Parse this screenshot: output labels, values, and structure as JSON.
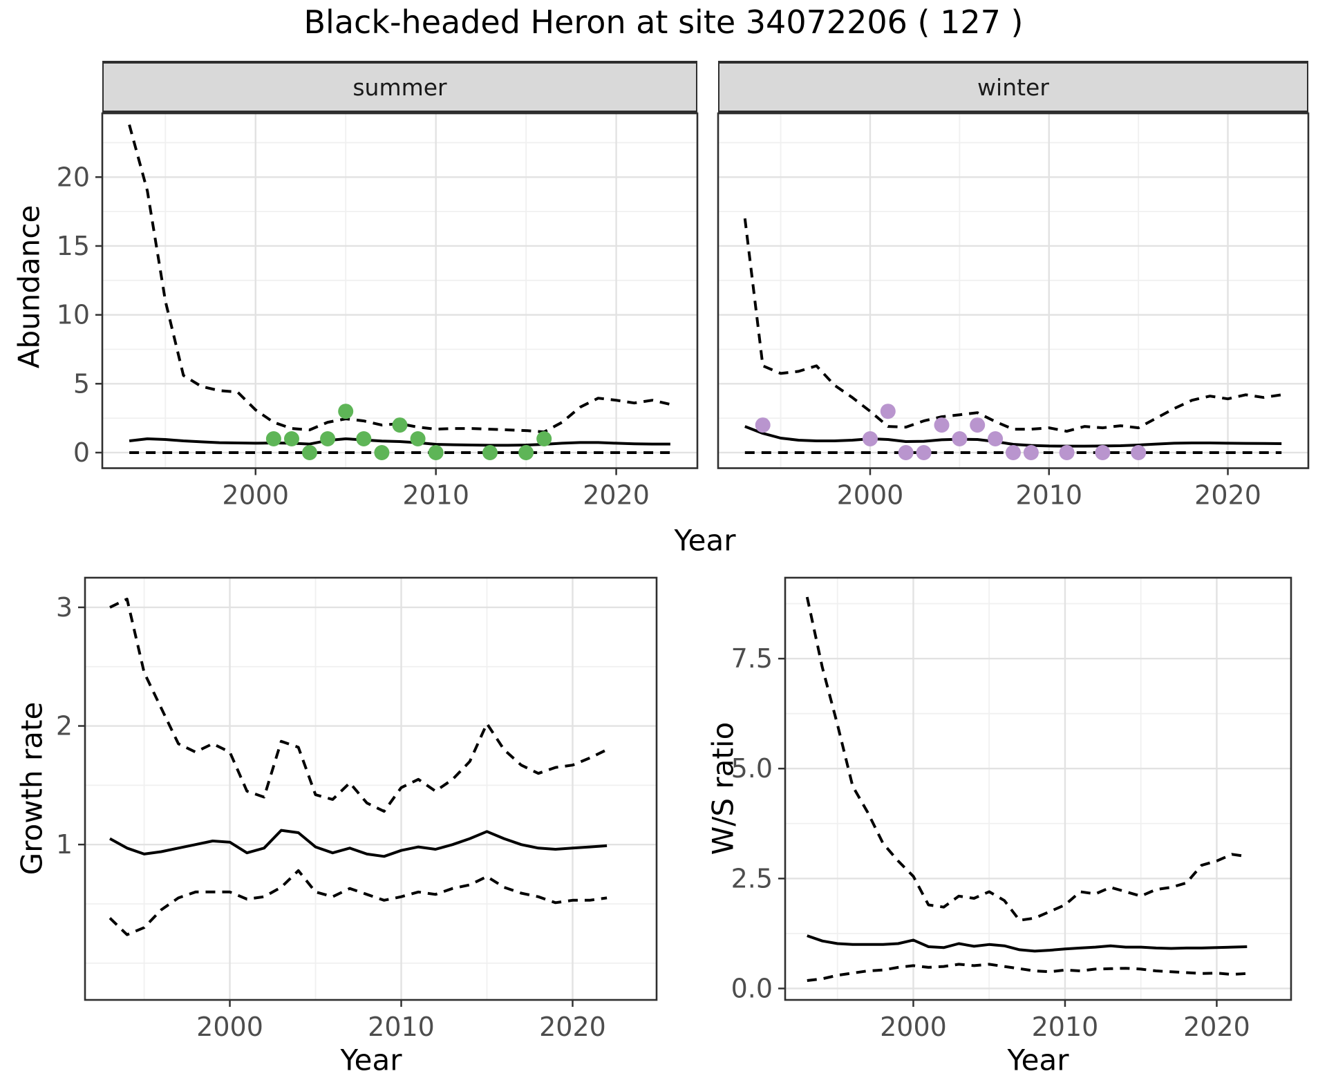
{
  "title": "Black-headed Heron at site 34072206 ( 127 )",
  "facets": [
    {
      "label": "summer"
    },
    {
      "label": "winter"
    }
  ],
  "axis_titles": {
    "year": "Year",
    "abundance": "Abundance",
    "growth_rate": "Growth rate",
    "ws_ratio": "W/S ratio"
  },
  "colors": {
    "summer_points": "#5eb557",
    "winter_points": "#b995ce",
    "line": "#000000",
    "strip_fill": "#d9d9d9",
    "strip_border": "#2e2e2e",
    "panel_border": "#2f2f2f",
    "grid_major": "#e2e2e2",
    "grid_minor": "#f0f0f0",
    "tick_text": "#4d4d4d",
    "tick_mark": "#333333"
  },
  "chart_data": [
    {
      "id": "abundance-summer",
      "type": "line",
      "facet_label": "summer",
      "xlabel": "Year",
      "ylabel": "Abundance",
      "xlim": [
        1991.5,
        2024.5
      ],
      "ylim": [
        -1.13,
        24.63
      ],
      "x_ticks": [
        2000,
        2010,
        2020
      ],
      "x_tick_labels": [
        "2000",
        "2010",
        "2020"
      ],
      "x_minor": [
        1995,
        2005,
        2015
      ],
      "y_ticks": [
        0,
        5,
        10,
        15,
        20
      ],
      "y_tick_labels": [
        "0",
        "5",
        "10",
        "15",
        "20"
      ],
      "y_minor": [
        2.5,
        7.5,
        12.5,
        17.5,
        22.5
      ],
      "grid": true,
      "legend": "none",
      "years": [
        1993,
        1994,
        1995,
        1996,
        1997,
        1998,
        1999,
        2000,
        2001,
        2002,
        2003,
        2004,
        2005,
        2006,
        2007,
        2008,
        2009,
        2010,
        2011,
        2012,
        2013,
        2014,
        2015,
        2016,
        2017,
        2018,
        2019,
        2020,
        2021,
        2022,
        2023
      ],
      "series": [
        {
          "name": "upper-credible-interval",
          "line": "dashed",
          "values": [
            23.8,
            19.0,
            11.0,
            5.6,
            4.8,
            4.5,
            4.4,
            3.1,
            2.2,
            1.75,
            1.65,
            2.2,
            2.45,
            2.3,
            2.0,
            2.1,
            1.85,
            1.7,
            1.75,
            1.75,
            1.7,
            1.65,
            1.6,
            1.5,
            2.2,
            3.3,
            3.95,
            3.8,
            3.6,
            3.8,
            3.5
          ]
        },
        {
          "name": "median-prediction",
          "line": "solid",
          "values": [
            0.85,
            1.0,
            0.95,
            0.85,
            0.78,
            0.72,
            0.7,
            0.68,
            0.7,
            0.68,
            0.62,
            0.88,
            1.0,
            0.92,
            0.84,
            0.8,
            0.72,
            0.6,
            0.57,
            0.55,
            0.53,
            0.53,
            0.55,
            0.6,
            0.68,
            0.73,
            0.73,
            0.68,
            0.64,
            0.62,
            0.62
          ]
        },
        {
          "name": "lower-credible-interval",
          "line": "dashed",
          "values": [
            0,
            0,
            0,
            0,
            0,
            0,
            0,
            0,
            0,
            0,
            0,
            0,
            0,
            0,
            0,
            0,
            0,
            0,
            0,
            0,
            0,
            0,
            0,
            0,
            0,
            0,
            0,
            0,
            0,
            0,
            0
          ]
        }
      ],
      "points": {
        "name": "observed-counts-summer",
        "color": "#5eb557",
        "years": [
          2001,
          2002,
          2003,
          2004,
          2005,
          2006,
          2007,
          2008,
          2009,
          2010,
          2013,
          2015,
          2016
        ],
        "values": [
          1,
          1,
          0,
          1,
          3,
          1,
          0,
          2,
          1,
          0,
          0,
          0,
          1
        ]
      }
    },
    {
      "id": "abundance-winter",
      "type": "line",
      "facet_label": "winter",
      "xlabel": "Year",
      "ylabel": "Abundance",
      "xlim": [
        1991.5,
        2024.5
      ],
      "ylim": [
        -1.13,
        24.63
      ],
      "x_ticks": [
        2000,
        2010,
        2020
      ],
      "x_tick_labels": [
        "2000",
        "2010",
        "2020"
      ],
      "x_minor": [
        1995,
        2005,
        2015
      ],
      "y_ticks": [
        0,
        5,
        10,
        15,
        20
      ],
      "y_tick_labels": [],
      "y_minor": [
        2.5,
        7.5,
        12.5,
        17.5,
        22.5
      ],
      "grid": true,
      "legend": "none",
      "years": [
        1993,
        1994,
        1995,
        1996,
        1997,
        1998,
        1999,
        2000,
        2001,
        2002,
        2003,
        2004,
        2005,
        2006,
        2007,
        2008,
        2009,
        2010,
        2011,
        2012,
        2013,
        2014,
        2015,
        2016,
        2017,
        2018,
        2019,
        2020,
        2021,
        2022,
        2023
      ],
      "series": [
        {
          "name": "upper-credible-interval",
          "line": "dashed",
          "values": [
            17.0,
            6.3,
            5.75,
            5.9,
            6.3,
            4.9,
            4.0,
            3.0,
            1.9,
            1.85,
            2.3,
            2.6,
            2.75,
            2.9,
            2.25,
            1.7,
            1.7,
            1.8,
            1.55,
            1.9,
            1.8,
            1.95,
            1.8,
            2.5,
            3.2,
            3.8,
            4.1,
            3.9,
            4.2,
            4.0,
            4.2
          ]
        },
        {
          "name": "median-prediction",
          "line": "solid",
          "values": [
            1.9,
            1.4,
            1.05,
            0.9,
            0.85,
            0.85,
            0.9,
            1.0,
            0.95,
            0.8,
            0.82,
            0.93,
            0.97,
            0.95,
            0.8,
            0.6,
            0.52,
            0.48,
            0.47,
            0.47,
            0.48,
            0.5,
            0.55,
            0.62,
            0.68,
            0.7,
            0.7,
            0.68,
            0.67,
            0.66,
            0.65
          ]
        },
        {
          "name": "lower-credible-interval",
          "line": "dashed",
          "values": [
            0,
            0,
            0,
            0,
            0,
            0,
            0,
            0,
            0,
            0,
            0,
            0,
            0,
            0,
            0,
            0,
            0,
            0,
            0,
            0,
            0,
            0,
            0,
            0,
            0,
            0,
            0,
            0,
            0,
            0,
            0
          ]
        }
      ],
      "points": {
        "name": "observed-counts-winter",
        "color": "#b995ce",
        "years": [
          1994,
          2000,
          2001,
          2002,
          2003,
          2004,
          2005,
          2006,
          2007,
          2008,
          2009,
          2011,
          2013,
          2015
        ],
        "values": [
          2,
          1,
          3,
          0,
          0,
          2,
          1,
          2,
          1,
          0,
          0,
          0,
          0,
          0
        ]
      }
    },
    {
      "id": "growth-rate",
      "type": "line",
      "facet_label": "",
      "xlabel": "Year",
      "ylabel": "Growth rate",
      "xlim": [
        1991.55,
        2024.9
      ],
      "ylim": [
        -0.31,
        3.25
      ],
      "x_ticks": [
        2000,
        2010,
        2020
      ],
      "x_tick_labels": [
        "2000",
        "2010",
        "2020"
      ],
      "x_minor": [
        1995,
        2005,
        2015
      ],
      "y_ticks": [
        1,
        2,
        3
      ],
      "y_tick_labels": [
        "1",
        "2",
        "3"
      ],
      "y_minor": [
        0,
        0.5,
        1.5,
        2.5
      ],
      "grid": true,
      "legend": "none",
      "years": [
        1993,
        1994,
        1995,
        1996,
        1997,
        1998,
        1999,
        2000,
        2001,
        2002,
        2003,
        2004,
        2005,
        2006,
        2007,
        2008,
        2009,
        2010,
        2011,
        2012,
        2013,
        2014,
        2015,
        2016,
        2017,
        2018,
        2019,
        2020,
        2021,
        2022
      ],
      "series": [
        {
          "name": "upper-credible-interval",
          "line": "dashed",
          "values": [
            3.0,
            3.07,
            2.45,
            2.15,
            1.85,
            1.78,
            1.85,
            1.78,
            1.45,
            1.4,
            1.87,
            1.82,
            1.42,
            1.38,
            1.52,
            1.35,
            1.28,
            1.48,
            1.55,
            1.45,
            1.55,
            1.7,
            2.02,
            1.8,
            1.67,
            1.6,
            1.65,
            1.67,
            1.73,
            1.8
          ]
        },
        {
          "name": "median-growth-rate",
          "line": "solid",
          "values": [
            1.05,
            0.97,
            0.92,
            0.94,
            0.97,
            1.0,
            1.03,
            1.02,
            0.93,
            0.97,
            1.12,
            1.1,
            0.98,
            0.93,
            0.97,
            0.92,
            0.9,
            0.95,
            0.98,
            0.96,
            1.0,
            1.05,
            1.11,
            1.05,
            1.0,
            0.97,
            0.96,
            0.97,
            0.98,
            0.99
          ]
        },
        {
          "name": "lower-credible-interval",
          "line": "dashed",
          "values": [
            0.38,
            0.24,
            0.3,
            0.45,
            0.55,
            0.6,
            0.6,
            0.6,
            0.54,
            0.56,
            0.64,
            0.78,
            0.6,
            0.56,
            0.63,
            0.58,
            0.53,
            0.56,
            0.6,
            0.58,
            0.63,
            0.66,
            0.73,
            0.64,
            0.59,
            0.56,
            0.51,
            0.53,
            0.53,
            0.55
          ]
        }
      ],
      "points": null
    },
    {
      "id": "ws-ratio",
      "type": "line",
      "facet_label": "",
      "xlabel": "Year",
      "ylabel": "W/S ratio",
      "xlim": [
        1991.55,
        2024.9
      ],
      "ylim": [
        -0.26,
        9.34
      ],
      "x_ticks": [
        2000,
        2010,
        2020
      ],
      "x_tick_labels": [
        "2000",
        "2010",
        "2020"
      ],
      "x_minor": [
        1995,
        2005,
        2015
      ],
      "y_ticks": [
        0,
        2.5,
        5,
        7.5
      ],
      "y_tick_labels": [
        "0.0",
        "2.5",
        "5.0",
        "7.5"
      ],
      "y_minor": [
        1.25,
        3.75,
        6.25,
        8.75
      ],
      "grid": true,
      "legend": "none",
      "years": [
        1993,
        1994,
        1995,
        1996,
        1997,
        1998,
        1999,
        2000,
        2001,
        2002,
        2003,
        2004,
        2005,
        2006,
        2007,
        2008,
        2009,
        2010,
        2011,
        2012,
        2013,
        2014,
        2015,
        2016,
        2017,
        2018,
        2019,
        2020,
        2021,
        2022
      ],
      "series": [
        {
          "name": "upper-credible-interval",
          "line": "dashed",
          "values": [
            8.9,
            7.3,
            6.0,
            4.6,
            4.0,
            3.3,
            2.9,
            2.55,
            1.9,
            1.85,
            2.1,
            2.05,
            2.2,
            2.0,
            1.55,
            1.6,
            1.75,
            1.9,
            2.2,
            2.15,
            2.3,
            2.2,
            2.1,
            2.25,
            2.3,
            2.4,
            2.8,
            2.9,
            3.05,
            3.0
          ]
        },
        {
          "name": "median-ws-ratio",
          "line": "solid",
          "values": [
            1.2,
            1.08,
            1.02,
            1.0,
            1.0,
            1.0,
            1.02,
            1.1,
            0.95,
            0.93,
            1.02,
            0.96,
            1.0,
            0.97,
            0.88,
            0.85,
            0.87,
            0.9,
            0.92,
            0.94,
            0.97,
            0.94,
            0.94,
            0.92,
            0.91,
            0.92,
            0.92,
            0.93,
            0.94,
            0.95
          ]
        },
        {
          "name": "lower-credible-interval",
          "line": "dashed",
          "values": [
            0.18,
            0.22,
            0.3,
            0.35,
            0.4,
            0.42,
            0.48,
            0.52,
            0.48,
            0.5,
            0.55,
            0.52,
            0.55,
            0.5,
            0.45,
            0.4,
            0.38,
            0.42,
            0.4,
            0.44,
            0.45,
            0.46,
            0.44,
            0.4,
            0.38,
            0.36,
            0.34,
            0.35,
            0.32,
            0.34
          ]
        }
      ],
      "points": null
    }
  ]
}
